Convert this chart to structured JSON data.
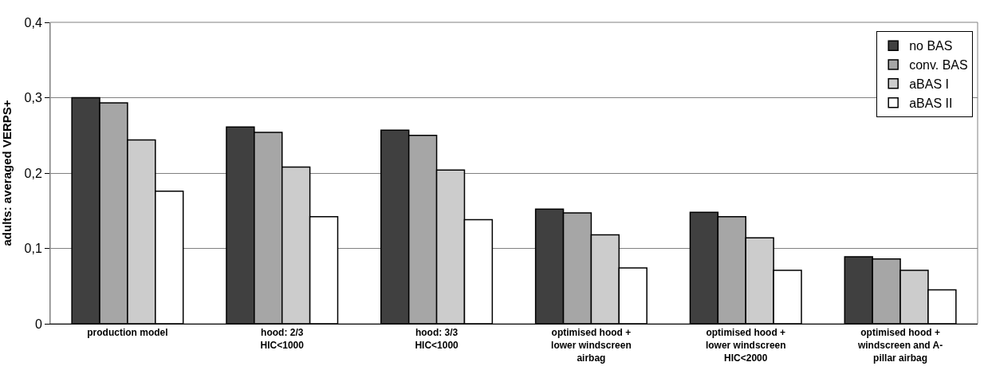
{
  "chart_data": {
    "type": "bar",
    "ylabel": "adults: averaged VERPS+",
    "categories": [
      "production model",
      "hood: 2/3\nHIC<1000",
      "hood: 3/3\nHIC<1000",
      "optimised hood +\nlower windscreen\nairbag",
      "optimised hood +\nlower windscreen\nHIC<2000",
      "optimised hood +\nwindscreen and A-\npillar airbag"
    ],
    "series": [
      {
        "name": "no BAS",
        "color": "#404040",
        "values": [
          0.3,
          0.261,
          0.257,
          0.152,
          0.148,
          0.089
        ]
      },
      {
        "name": "conv. BAS",
        "color": "#a6a6a6",
        "values": [
          0.293,
          0.254,
          0.25,
          0.147,
          0.142,
          0.086
        ]
      },
      {
        "name": "aBAS I",
        "color": "#cccccc",
        "values": [
          0.244,
          0.208,
          0.204,
          0.118,
          0.114,
          0.071
        ]
      },
      {
        "name": "aBAS II",
        "color": "#ffffff",
        "values": [
          0.176,
          0.142,
          0.138,
          0.074,
          0.071,
          0.045
        ]
      }
    ],
    "ylim": [
      0,
      0.4
    ],
    "yticks": [
      0,
      {
        "value": 0.1,
        "label": "0,1"
      },
      {
        "value": 0.2,
        "label": "0,2"
      },
      {
        "value": 0.3,
        "label": "0,3"
      },
      {
        "value": 0.4,
        "label": "0,4"
      }
    ],
    "grid": "y",
    "legend": "top right"
  }
}
